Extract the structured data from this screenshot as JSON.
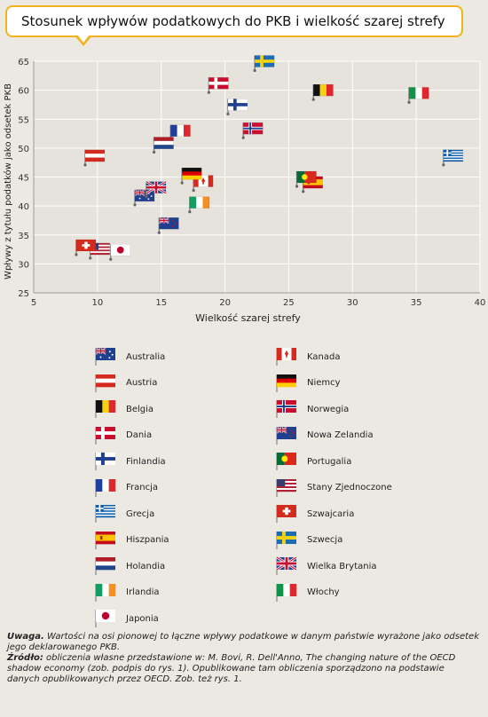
{
  "title": "Stosunek wpływów podatkowych do PKB i wielkość szarej strefy",
  "chart_data": {
    "type": "scatter",
    "xlabel": "Wielkość szarej strefy",
    "ylabel": "Wpływy z tytułu podatków jako odsetek PKB",
    "xlim": [
      5,
      40
    ],
    "ylim": [
      25,
      65
    ],
    "xticks": [
      5,
      10,
      15,
      20,
      25,
      30,
      35,
      40
    ],
    "yticks": [
      25,
      30,
      35,
      40,
      45,
      50,
      55,
      60,
      65
    ],
    "grid": true,
    "points": [
      {
        "label": "Australia",
        "x": 13.7,
        "y": 41.8
      },
      {
        "label": "Austria",
        "x": 9.8,
        "y": 48.7
      },
      {
        "label": "Belgia",
        "x": 27.7,
        "y": 60.0
      },
      {
        "label": "Dania",
        "x": 19.5,
        "y": 61.2
      },
      {
        "label": "Finlandia",
        "x": 21.0,
        "y": 57.5
      },
      {
        "label": "Francja",
        "x": 16.5,
        "y": 53.0
      },
      {
        "label": "Grecja",
        "x": 37.9,
        "y": 48.7
      },
      {
        "label": "Hiszpania",
        "x": 26.9,
        "y": 44.1
      },
      {
        "label": "Holandia",
        "x": 15.2,
        "y": 50.9
      },
      {
        "label": "Irlandia",
        "x": 18.0,
        "y": 40.6
      },
      {
        "label": "Japonia",
        "x": 11.8,
        "y": 32.4
      },
      {
        "label": "Kanada",
        "x": 18.3,
        "y": 44.3
      },
      {
        "label": "Niemcy",
        "x": 17.4,
        "y": 45.6
      },
      {
        "label": "Norwegia",
        "x": 22.2,
        "y": 53.4
      },
      {
        "label": "Nowa Zelandia",
        "x": 15.6,
        "y": 37.0
      },
      {
        "label": "Portugalia",
        "x": 26.4,
        "y": 45.0
      },
      {
        "label": "Stany Zjednoczone",
        "x": 10.2,
        "y": 32.6
      },
      {
        "label": "Szwajcaria",
        "x": 9.1,
        "y": 33.2
      },
      {
        "label": "Szwecja",
        "x": 23.1,
        "y": 65.0
      },
      {
        "label": "Wielka Brytania",
        "x": 14.6,
        "y": 43.2
      },
      {
        "label": "Włochy",
        "x": 35.2,
        "y": 59.5
      }
    ]
  },
  "legend": {
    "left": [
      "Australia",
      "Austria",
      "Belgia",
      "Dania",
      "Finlandia",
      "Francja",
      "Grecja",
      "Hiszpania",
      "Holandia",
      "Irlandia",
      "Japonia"
    ],
    "right": [
      "Kanada",
      "Niemcy",
      "Norwegia",
      "Nowa Zelandia",
      "Portugalia",
      "Stany Zjednoczone",
      "Szwajcaria",
      "Szwecja",
      "Wielka Brytania",
      "Włochy"
    ]
  },
  "footer": {
    "note_label": "Uwaga.",
    "note_text": " Wartości na osi pionowej to łączne wpływy podatkowe w danym państwie wyrażone jako odsetek jego deklarowanego PKB.",
    "source_label": "Źródło:",
    "source_text": " obliczenia własne przedstawione w: M. Bovi, R. Dell'Anno, The changing nature of the OECD shadow economy (zob. podpis do rys. 1). Opublikowane tam obliczenia sporządzono na podstawie danych opublikowanych przez OECD. Zob. też rys. 1."
  },
  "colors": {
    "title_border": "#f0b21a",
    "grid": "#ffffff",
    "background": "#ece9e3",
    "flag_pole": "#888888"
  }
}
